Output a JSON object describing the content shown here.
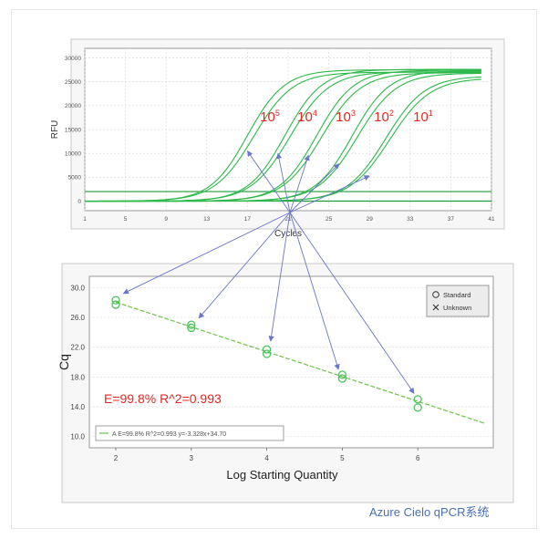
{
  "caption": "Azure Cielo qPCR系统",
  "colors": {
    "curve": "#2db84a",
    "curve_dark": "#1f9a3a",
    "marker": "#49c45a",
    "fit_line": "#6cc24a",
    "arrow": "#6b76c8",
    "label_red": "#e8251f",
    "frame": "#9a9a9a",
    "panel_bg": "#ffffff",
    "plot_bg": "#ffffff",
    "grid": "#d7d7d7"
  },
  "chart_data": [
    {
      "type": "line",
      "ylabel": "RFU",
      "xlabel": "Cycles",
      "xlim": [
        1,
        41
      ],
      "ylim": [
        -2000,
        32000
      ],
      "xticks": [
        "1",
        "5",
        "9",
        "13",
        "17",
        "21",
        "25",
        "29",
        "33",
        "37",
        "41"
      ],
      "yticks": [
        "0",
        "5000",
        "10000",
        "15000",
        "20000",
        "25000",
        "30000"
      ],
      "grid": true,
      "threshold": 2000,
      "baseline": 0,
      "dilution_labels": [
        {
          "base": "10",
          "exp": "5"
        },
        {
          "base": "10",
          "exp": "4"
        },
        {
          "base": "10",
          "exp": "3"
        },
        {
          "base": "10",
          "exp": "2"
        },
        {
          "base": "10",
          "exp": "1"
        }
      ],
      "series": [
        {
          "x0": 17.0,
          "k": 0.55,
          "plateau": 27500
        },
        {
          "x0": 17.6,
          "k": 0.52,
          "plateau": 27000
        },
        {
          "x0": 20.7,
          "k": 0.55,
          "plateau": 27600
        },
        {
          "x0": 21.2,
          "k": 0.52,
          "plateau": 27100
        },
        {
          "x0": 23.8,
          "k": 0.55,
          "plateau": 27400
        },
        {
          "x0": 24.3,
          "k": 0.52,
          "plateau": 26900
        },
        {
          "x0": 27.3,
          "k": 0.55,
          "plateau": 27300
        },
        {
          "x0": 27.8,
          "k": 0.52,
          "plateau": 26800
        },
        {
          "x0": 30.6,
          "k": 0.52,
          "plateau": 26200
        },
        {
          "x0": 31.0,
          "k": 0.5,
          "plateau": 25800
        }
      ],
      "arrow_targets": [
        {
          "x": 17.0,
          "y": 10500
        },
        {
          "x": 20.0,
          "y": 10000
        },
        {
          "x": 23.0,
          "y": 9600
        },
        {
          "x": 26.0,
          "y": 7800
        },
        {
          "x": 29.0,
          "y": 5300
        }
      ]
    },
    {
      "type": "scatter",
      "xlabel": "Log Starting Quantity",
      "ylabel": "Cq",
      "xlim": [
        1.65,
        7.0
      ],
      "ylim": [
        8.5,
        31.5
      ],
      "xticks": [
        "2",
        "3",
        "4",
        "5",
        "6"
      ],
      "yticks": [
        "10.0",
        "14.0",
        "18.0",
        "22.0",
        "26.0",
        "30.0"
      ],
      "legend_entries": [
        "Standard",
        "Unknown"
      ],
      "legend_placement": "top-right",
      "equation_label": "E=99.8%  R^2=0.993",
      "fit_legend": "A E=99.8% R^2=0.993 y=-3.328x+34.70",
      "fit": {
        "slope": -3.328,
        "intercept": 34.7,
        "x_range": [
          2.0,
          6.9
        ]
      },
      "points": [
        {
          "x": 2,
          "y": 28.3
        },
        {
          "x": 2,
          "y": 27.7
        },
        {
          "x": 3,
          "y": 25.0
        },
        {
          "x": 3,
          "y": 24.6
        },
        {
          "x": 4,
          "y": 21.7
        },
        {
          "x": 4,
          "y": 21.1
        },
        {
          "x": 5,
          "y": 18.3
        },
        {
          "x": 5,
          "y": 17.8
        },
        {
          "x": 6,
          "y": 15.0
        },
        {
          "x": 6,
          "y": 13.9
        }
      ],
      "arrow_targets": [
        {
          "x": 2.1,
          "y": 29.2
        },
        {
          "x": 3.1,
          "y": 25.9
        },
        {
          "x": 4.05,
          "y": 22.8
        },
        {
          "x": 4.95,
          "y": 19.0
        },
        {
          "x": 5.95,
          "y": 15.8
        }
      ]
    }
  ]
}
